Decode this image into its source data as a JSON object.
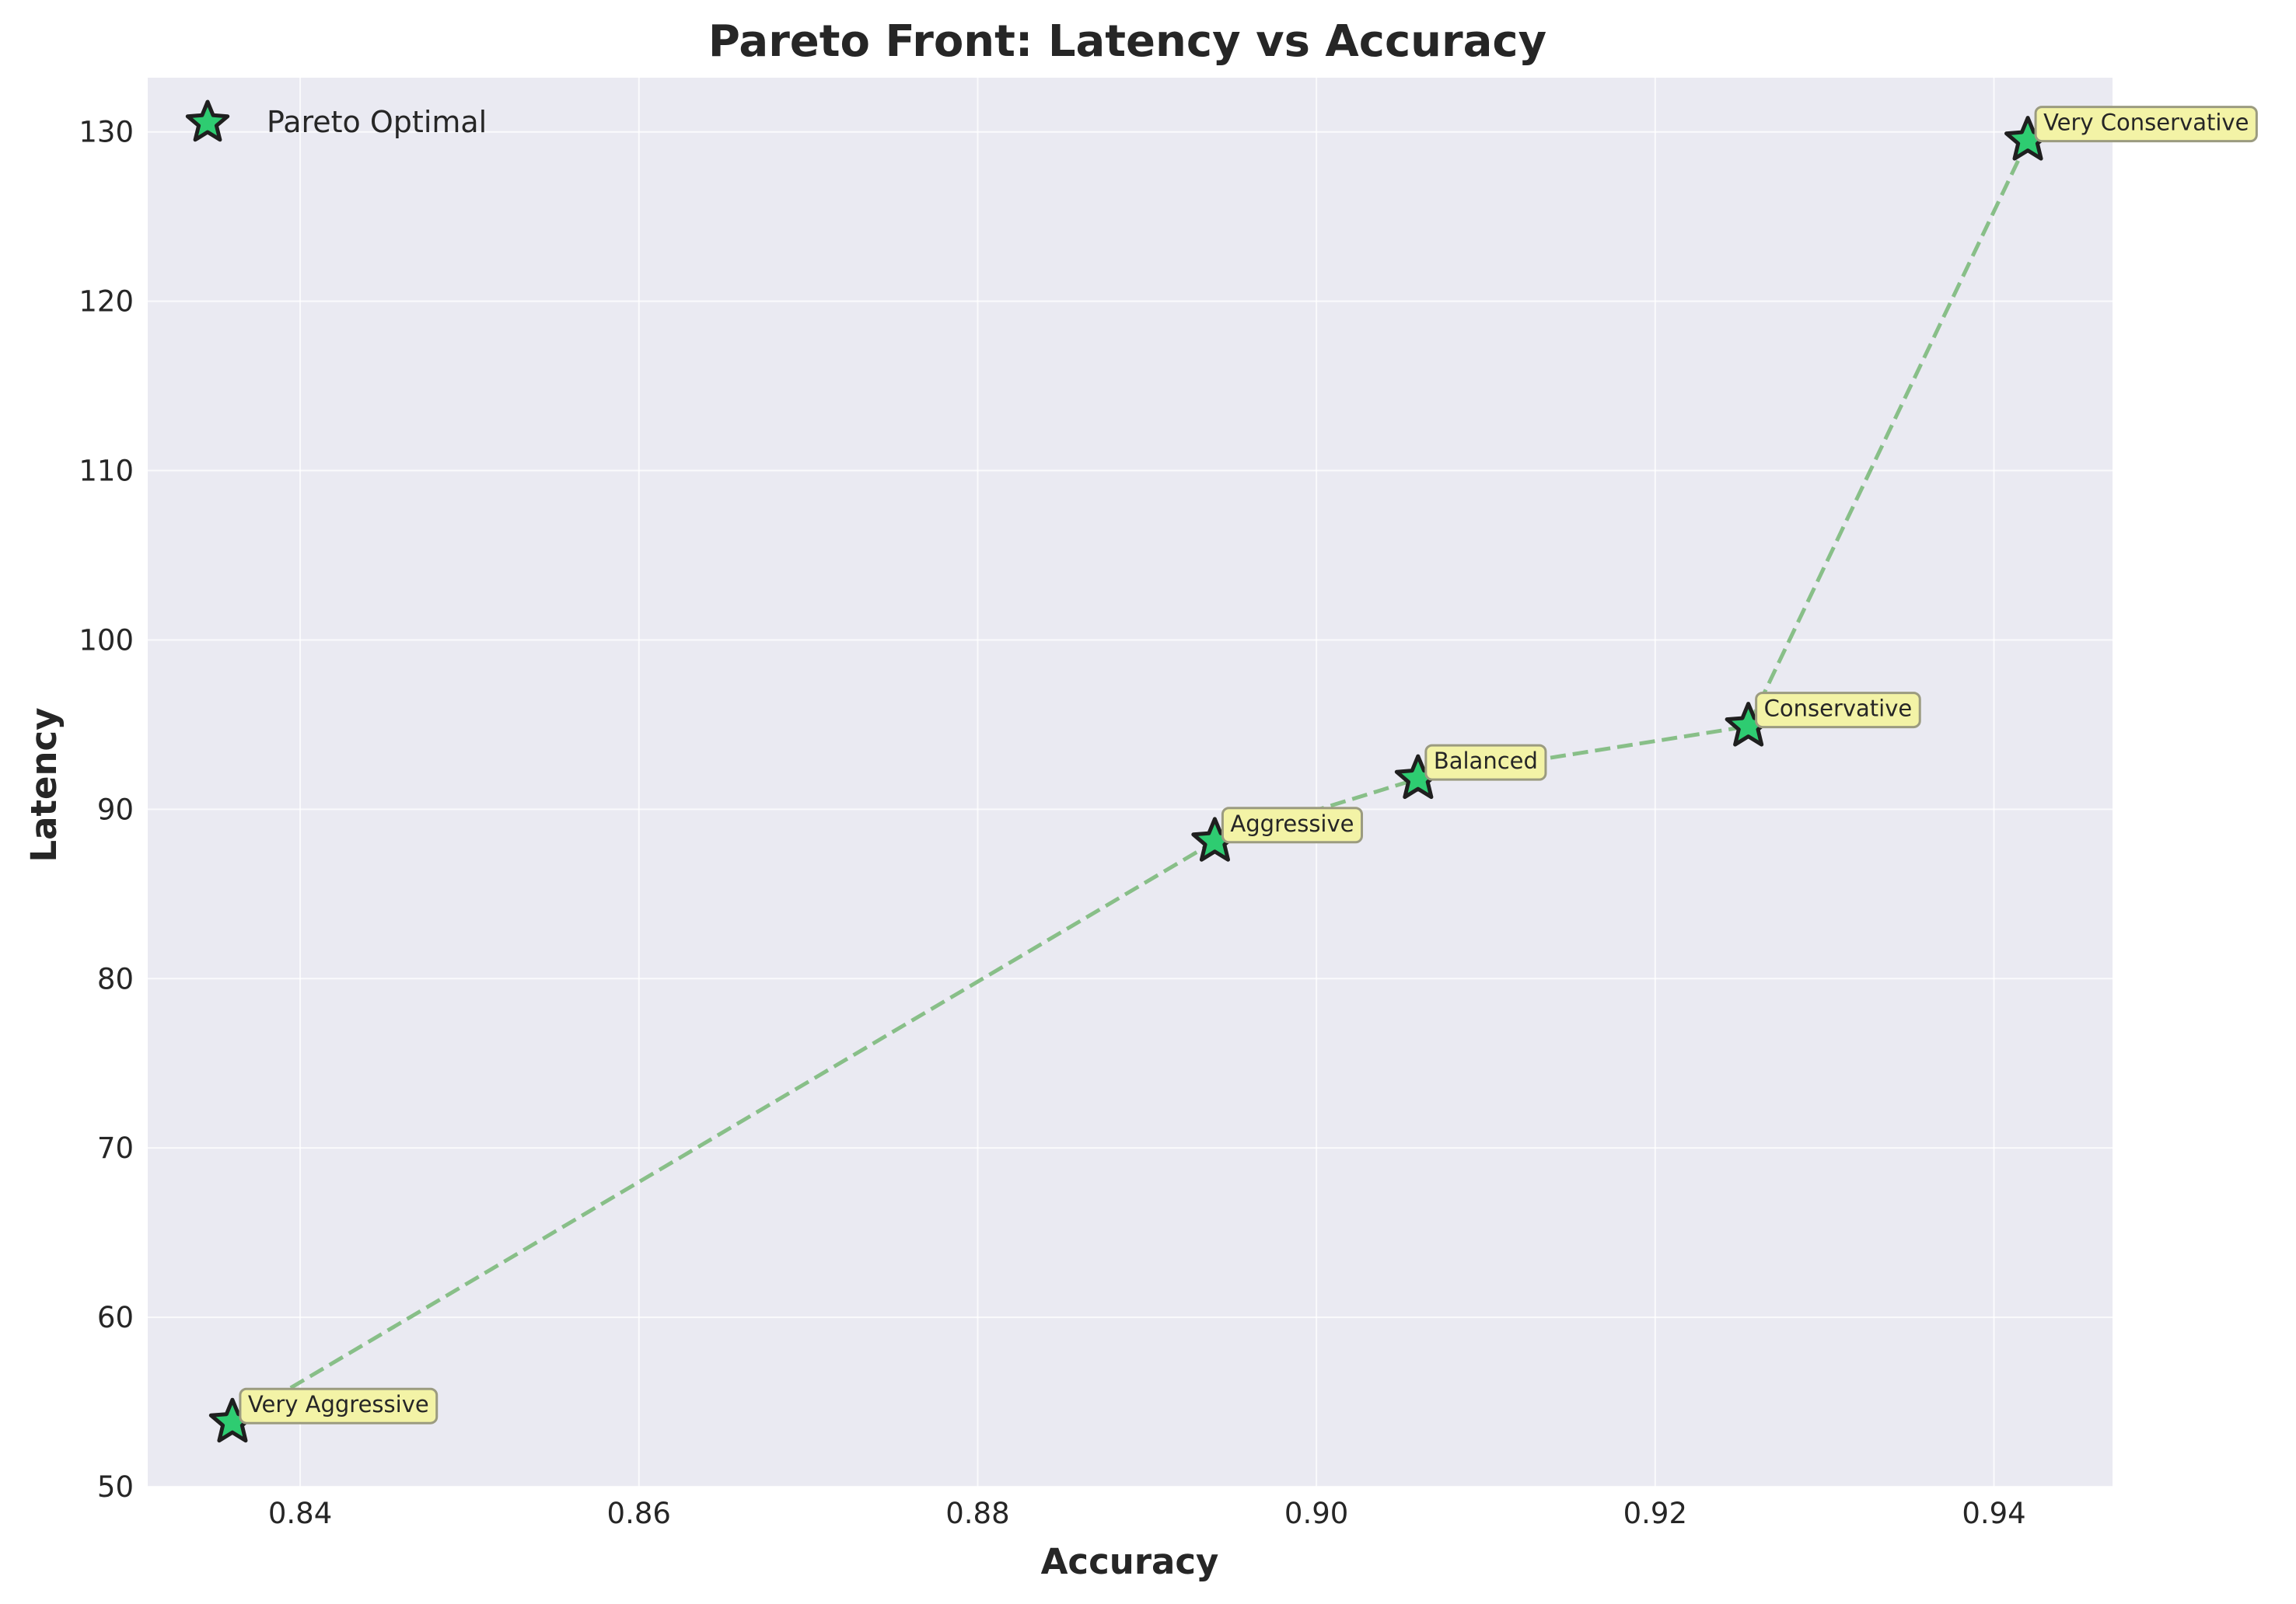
{
  "chart_data": {
    "type": "scatter",
    "title": "Pareto Front: Latency vs Accuracy",
    "xlabel": "Accuracy",
    "ylabel": "Latency",
    "xlim": [
      0.831,
      0.947
    ],
    "ylim": [
      50,
      133.2
    ],
    "xticks": [
      0.84,
      0.86,
      0.88,
      0.9,
      0.92,
      0.94
    ],
    "xtick_labels": [
      "0.84",
      "0.86",
      "0.88",
      "0.90",
      "0.92",
      "0.94"
    ],
    "yticks": [
      50,
      60,
      70,
      80,
      90,
      100,
      110,
      120,
      130
    ],
    "ytick_labels": [
      "50",
      "60",
      "70",
      "80",
      "90",
      "100",
      "110",
      "120",
      "130"
    ],
    "grid": true,
    "legend_position": "top-left",
    "colors": {
      "plot_background": "#eaeaf2",
      "marker_fill": "#2ecc71",
      "marker_edge": "#1f1f1f",
      "line": "#88bf88",
      "annotation_fill": "#f3f3a6",
      "annotation_edge": "#9b9b80",
      "text": "#262626"
    },
    "series": [
      {
        "name": "Pareto Optimal",
        "marker": "star",
        "connect": "dashed",
        "points": [
          {
            "x": 0.836,
            "y": 53.8,
            "label": "Very Aggressive"
          },
          {
            "x": 0.894,
            "y": 88.1,
            "label": "Aggressive"
          },
          {
            "x": 0.906,
            "y": 91.8,
            "label": "Balanced"
          },
          {
            "x": 0.9255,
            "y": 94.9,
            "label": "Conservative"
          },
          {
            "x": 0.942,
            "y": 129.5,
            "label": "Very Conservative"
          }
        ]
      }
    ]
  }
}
